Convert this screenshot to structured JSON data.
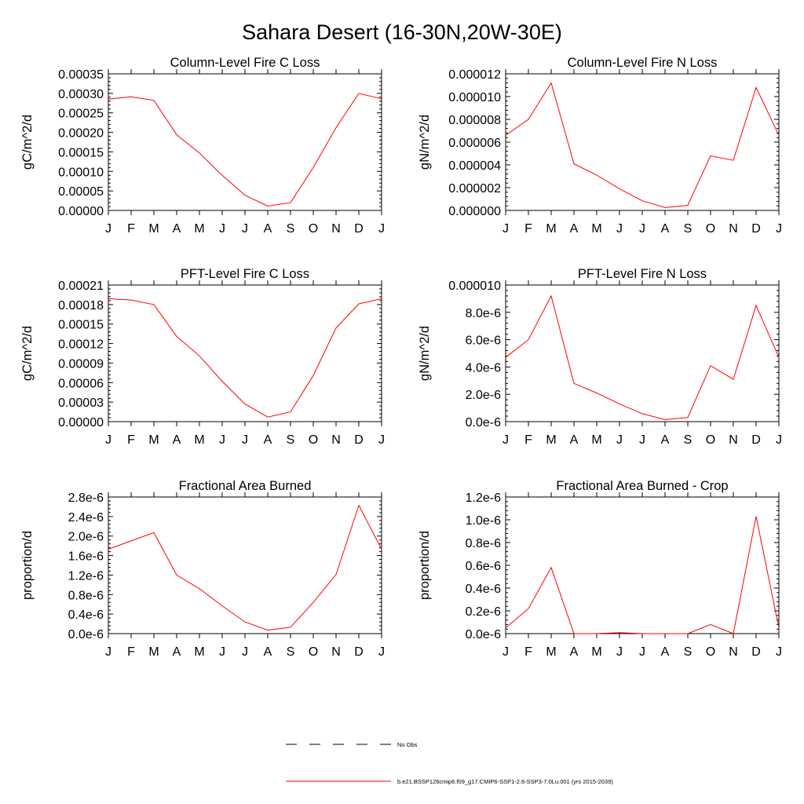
{
  "figure": {
    "title": "Sahara Desert (16-30N,20W-30E)"
  },
  "chart_data": [
    {
      "type": "line",
      "title": "Column-Level Fire C Loss",
      "xlabel": "",
      "ylabel": "gC/m^2/d",
      "categories": [
        "J",
        "F",
        "M",
        "A",
        "M",
        "J",
        "J",
        "A",
        "S",
        "O",
        "N",
        "D",
        "J"
      ],
      "ylim": [
        0,
        0.00035
      ],
      "yticks": [
        "0.00000",
        "0.00005",
        "0.00010",
        "0.00015",
        "0.00020",
        "0.00025",
        "0.00030",
        "0.00035"
      ],
      "series": [
        {
          "color": "#ff0000",
          "values": [
            0.000285,
            0.000291,
            0.000282,
            0.000194,
            0.000147,
            9e-05,
            3.9e-05,
            1.1e-05,
            2e-05,
            0.00011,
            0.000212,
            0.0003,
            0.000286
          ]
        }
      ]
    },
    {
      "type": "line",
      "title": "Column-Level Fire N Loss",
      "xlabel": "",
      "ylabel": "gN/m^2/d",
      "categories": [
        "J",
        "F",
        "M",
        "A",
        "M",
        "J",
        "J",
        "A",
        "S",
        "O",
        "N",
        "D",
        "J"
      ],
      "ylim": [
        0,
        1.2e-05
      ],
      "yticks": [
        "0.000000",
        "0.000002",
        "0.000004",
        "0.000006",
        "0.000008",
        "0.000010",
        "0.000012"
      ],
      "series": [
        {
          "color": "#ff0000",
          "values": [
            6.6e-06,
            8e-06,
            1.12e-05,
            4.1e-06,
            3.1e-06,
            1.9e-06,
            8.5e-07,
            2.5e-07,
            4.5e-07,
            4.8e-06,
            4.4e-06,
            1.08e-05,
            6.6e-06
          ]
        }
      ]
    },
    {
      "type": "line",
      "title": "PFT-Level Fire C Loss",
      "xlabel": "",
      "ylabel": "gC/m^2/d",
      "categories": [
        "J",
        "F",
        "M",
        "A",
        "M",
        "J",
        "J",
        "A",
        "S",
        "O",
        "N",
        "D",
        "J"
      ],
      "ylim": [
        0,
        0.00021
      ],
      "yticks": [
        "0.00000",
        "0.00003",
        "0.00006",
        "0.00009",
        "0.00012",
        "0.00015",
        "0.00018",
        "0.00021"
      ],
      "series": [
        {
          "color": "#ff0000",
          "values": [
            0.000189,
            0.000187,
            0.00018,
            0.000131,
            0.000101,
            6.2e-05,
            2.7e-05,
            7e-06,
            1.5e-05,
            7.1e-05,
            0.000144,
            0.000181,
            0.000189
          ]
        }
      ]
    },
    {
      "type": "line",
      "title": "PFT-Level Fire N Loss",
      "xlabel": "",
      "ylabel": "gN/m^2/d",
      "categories": [
        "J",
        "F",
        "M",
        "A",
        "M",
        "J",
        "J",
        "A",
        "S",
        "O",
        "N",
        "D",
        "J"
      ],
      "ylim": [
        0,
        1e-05
      ],
      "yticks": [
        "0.0e-6",
        "2.0e-6",
        "4.0e-6",
        "6.0e-6",
        "8.0e-6",
        "0.000010"
      ],
      "series": [
        {
          "color": "#ff0000",
          "values": [
            4.7e-06,
            6e-06,
            9.2e-06,
            2.8e-06,
            2.1e-06,
            1.3e-06,
            5.8e-07,
            1.5e-07,
            3e-07,
            4.1e-06,
            3.1e-06,
            8.5e-06,
            4.7e-06
          ]
        }
      ]
    },
    {
      "type": "line",
      "title": "Fractional Area Burned",
      "xlabel": "",
      "ylabel": "proportion/d",
      "categories": [
        "J",
        "F",
        "M",
        "A",
        "M",
        "J",
        "J",
        "A",
        "S",
        "O",
        "N",
        "D",
        "J"
      ],
      "ylim": [
        0,
        2.8e-06
      ],
      "yticks": [
        "0.0e-6",
        "0.4e-6",
        "0.8e-6",
        "1.2e-6",
        "1.6e-6",
        "2.0e-6",
        "2.4e-6",
        "2.8e-6"
      ],
      "series": [
        {
          "color": "#ff0000",
          "values": [
            1.73e-06,
            1.9e-06,
            2.07e-06,
            1.2e-06,
            9.2e-07,
            5.7e-07,
            2.4e-07,
            7e-08,
            1.3e-07,
            6.4e-07,
            1.21e-06,
            2.63e-06,
            1.73e-06
          ]
        }
      ]
    },
    {
      "type": "line",
      "title": "Fractional Area Burned - Crop",
      "xlabel": "",
      "ylabel": "proportion/d",
      "categories": [
        "J",
        "F",
        "M",
        "A",
        "M",
        "J",
        "J",
        "A",
        "S",
        "O",
        "N",
        "D",
        "J"
      ],
      "ylim": [
        0,
        1.2e-06
      ],
      "yticks": [
        "0.0e-6",
        "0.2e-6",
        "0.4e-6",
        "0.6e-6",
        "0.8e-6",
        "1.0e-6",
        "1.2e-6"
      ],
      "series": [
        {
          "color": "#ff0000",
          "values": [
            5e-08,
            2.2e-07,
            5.8e-07,
            0.0,
            0.0,
            8e-09,
            0.0,
            0.0,
            0.0,
            8e-08,
            0.0,
            1.03e-06,
            5e-08
          ]
        }
      ]
    }
  ],
  "legend": {
    "entries": [
      {
        "label": "No Obs",
        "style": "dashed",
        "color": "#000000"
      },
      {
        "label": "b.e21.BSSP126cmip6.f09_g17.CMIP6-SSP1-2.6-SSP3-7.0Lu.001 (yrs 2015-2039)",
        "style": "solid",
        "color": "#ff0000"
      }
    ]
  }
}
